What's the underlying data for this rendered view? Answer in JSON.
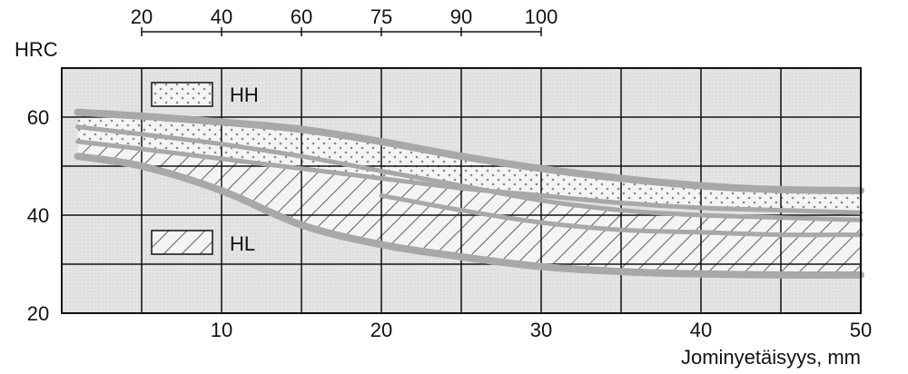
{
  "chart_data": {
    "type": "area",
    "title": "",
    "xlabel": "Jominyetäisyys, mm",
    "ylabel": "HRC",
    "xlim": [
      0,
      50
    ],
    "ylim": [
      20,
      70
    ],
    "x_ticks": [
      10,
      20,
      30,
      40,
      50
    ],
    "y_ticks": [
      20,
      40,
      60
    ],
    "grid": true,
    "top_axis": {
      "ticks": [
        {
          "label": "20",
          "x": 5
        },
        {
          "label": "40",
          "x": 10
        },
        {
          "label": "60",
          "x": 15
        },
        {
          "label": "75",
          "x": 20
        },
        {
          "label": "90",
          "x": 25
        },
        {
          "label": "100",
          "x": 30
        }
      ]
    },
    "legend": {
      "placement": "inside-left",
      "entries": [
        {
          "label": "HH",
          "pattern": "dots"
        },
        {
          "label": "HL",
          "pattern": "hatch"
        }
      ]
    },
    "series": [
      {
        "name": "HH",
        "pattern": "dots",
        "upper": [
          [
            1,
            61
          ],
          [
            5,
            60.2
          ],
          [
            10,
            59
          ],
          [
            15,
            57.5
          ],
          [
            20,
            55
          ],
          [
            25,
            52
          ],
          [
            30,
            49.5
          ],
          [
            35,
            47.5
          ],
          [
            40,
            46
          ],
          [
            45,
            45.2
          ],
          [
            50,
            45
          ]
        ],
        "lower": [
          [
            1,
            55
          ],
          [
            5,
            53.5
          ],
          [
            10,
            51.5
          ],
          [
            15,
            49.5
          ],
          [
            20,
            47.5
          ],
          [
            25,
            45.5
          ],
          [
            30,
            44
          ],
          [
            35,
            42.5
          ],
          [
            40,
            41.5
          ],
          [
            45,
            41
          ],
          [
            50,
            40.5
          ]
        ]
      },
      {
        "name": "HL",
        "pattern": "hatch",
        "upper": [
          [
            1,
            58
          ],
          [
            5,
            56.5
          ],
          [
            10,
            54.5
          ],
          [
            15,
            52
          ],
          [
            20,
            49
          ],
          [
            25,
            46
          ],
          [
            30,
            43
          ],
          [
            35,
            41
          ],
          [
            40,
            40
          ],
          [
            45,
            39.5
          ],
          [
            50,
            39
          ]
        ],
        "lower": [
          [
            1,
            52
          ],
          [
            5,
            50
          ],
          [
            10,
            45
          ],
          [
            15,
            38
          ],
          [
            20,
            34
          ],
          [
            25,
            31.5
          ],
          [
            30,
            29.5
          ],
          [
            35,
            28.5
          ],
          [
            40,
            28
          ],
          [
            45,
            27.8
          ],
          [
            50,
            27.8
          ]
        ]
      }
    ],
    "boundary_lines": [
      [
        [
          1,
          61
        ],
        [
          5,
          60.2
        ],
        [
          10,
          59
        ],
        [
          15,
          57.5
        ],
        [
          20,
          55
        ],
        [
          25,
          52
        ],
        [
          30,
          49.5
        ],
        [
          35,
          47.5
        ],
        [
          40,
          46
        ],
        [
          45,
          45.2
        ],
        [
          50,
          45
        ]
      ],
      [
        [
          1,
          58
        ],
        [
          5,
          56.5
        ],
        [
          10,
          54.5
        ],
        [
          15,
          52
        ],
        [
          20,
          49
        ],
        [
          25,
          46
        ],
        [
          30,
          43
        ],
        [
          35,
          41
        ],
        [
          40,
          40
        ],
        [
          45,
          39.5
        ],
        [
          50,
          39
        ]
      ],
      [
        [
          1,
          55
        ],
        [
          5,
          53.5
        ],
        [
          10,
          51.5
        ],
        [
          15,
          49.5
        ],
        [
          20,
          47.5
        ],
        [
          25,
          45.5
        ],
        [
          30,
          44
        ],
        [
          35,
          42.5
        ],
        [
          40,
          41.5
        ],
        [
          45,
          41
        ],
        [
          50,
          40.5
        ]
      ],
      [
        [
          1,
          52
        ],
        [
          5,
          50
        ],
        [
          10,
          45
        ],
        [
          15,
          38
        ],
        [
          20,
          34
        ],
        [
          25,
          31.5
        ],
        [
          30,
          29.5
        ],
        [
          35,
          28.5
        ],
        [
          40,
          28
        ],
        [
          45,
          27.8
        ],
        [
          50,
          27.8
        ]
      ],
      [
        [
          20,
          44
        ],
        [
          25,
          41
        ],
        [
          30,
          38.5
        ],
        [
          35,
          37
        ],
        [
          40,
          36.5
        ],
        [
          45,
          36
        ],
        [
          50,
          36
        ]
      ]
    ],
    "colors": {
      "plot_background": "#e4e4e4",
      "grid": "#111111",
      "band_line": "#a8a8a8",
      "band_fill": "#f4f4f4",
      "dots": "#8a8a8a",
      "hatch": "#777777"
    }
  }
}
